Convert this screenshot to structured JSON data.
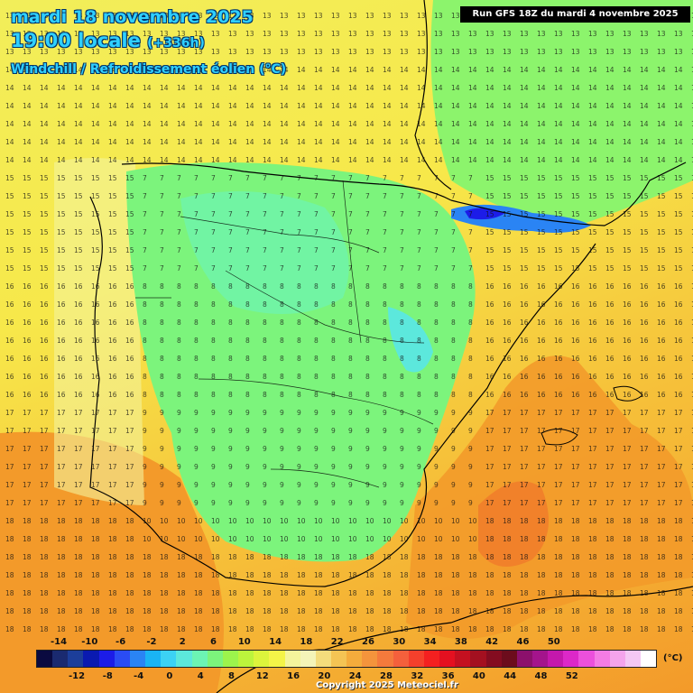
{
  "header": {
    "date": "mardi 18 novembre 2025",
    "time": "19:00 locale",
    "lead": "(+336h)",
    "parameter": "Windchill / Refroidissement éolien (°C)",
    "run": "Run GFS 18Z du mardi 4 novembre 2025"
  },
  "scale": {
    "top_labels": [
      "-14",
      "-10",
      "-6",
      "-2",
      "2",
      "6",
      "10",
      "14",
      "18",
      "22",
      "26",
      "30",
      "34",
      "38",
      "42",
      "46",
      "50"
    ],
    "bottom_labels": [
      "-12",
      "-8",
      "-4",
      "0",
      "4",
      "8",
      "12",
      "16",
      "20",
      "24",
      "28",
      "32",
      "36",
      "40",
      "44",
      "48",
      "52"
    ],
    "unit": "(°C)",
    "colors": [
      "#0a0a40",
      "#1a2a70",
      "#1c3e9a",
      "#0a1ab0",
      "#1c1ce8",
      "#2a4cf4",
      "#2a84f4",
      "#1ab4f4",
      "#3cd2f4",
      "#5ce8dc",
      "#6cf4b4",
      "#7cf47c",
      "#9cf44c",
      "#bcf43c",
      "#dcf43c",
      "#f4f448",
      "#f4f49c",
      "#f4f4b8",
      "#f4dc7c",
      "#f4c454",
      "#f4ac3c",
      "#f4943c",
      "#f47a3c",
      "#f4603c",
      "#f4402c",
      "#f42020",
      "#e41020",
      "#c41020",
      "#a41020",
      "#840c20",
      "#6c0c1c",
      "#8c106c",
      "#a4148c",
      "#c418ac",
      "#dc28c8",
      "#ec50dc",
      "#f47ce4",
      "#f4a4ec",
      "#f4c8f4",
      "#ffffff"
    ]
  },
  "copyright": "Copyright 2025 Meteociel.fr"
}
